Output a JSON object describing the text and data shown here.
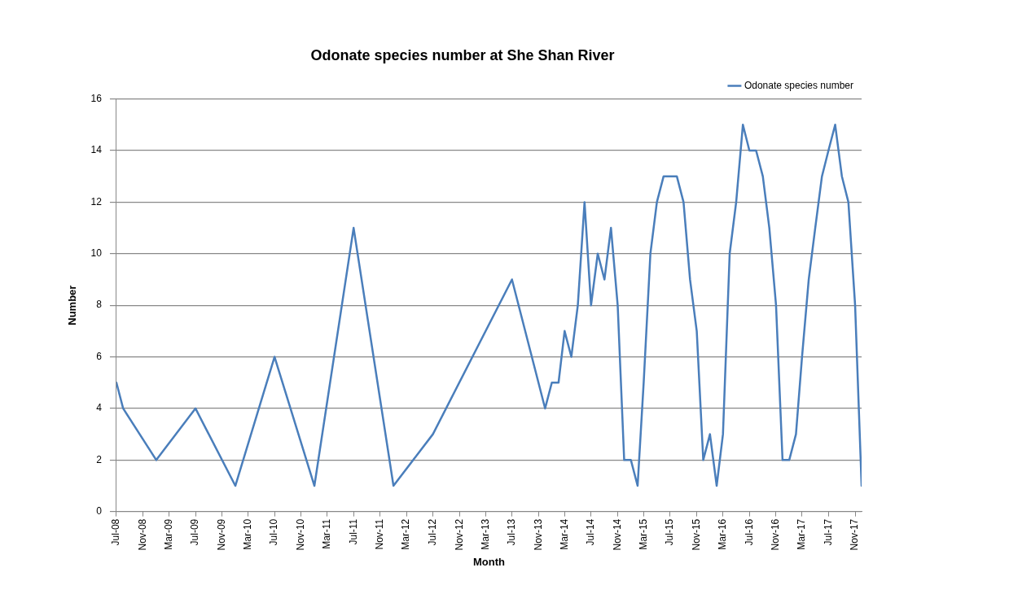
{
  "chart_data": {
    "type": "line",
    "title": "Odonate species number at She Shan River",
    "xlabel": "Month",
    "ylabel": "Number",
    "x": [
      "2008-07",
      "2008-08",
      "2009-01",
      "2009-07",
      "2010-01",
      "2010-07",
      "2011-01",
      "2011-07",
      "2012-01",
      "2012-07",
      "2013-07",
      "2013-12",
      "2014-01",
      "2014-02",
      "2014-03",
      "2014-04",
      "2014-05",
      "2014-06",
      "2014-07",
      "2014-08",
      "2014-09",
      "2014-10",
      "2014-11",
      "2014-12",
      "2015-01",
      "2015-02",
      "2015-03",
      "2015-04",
      "2015-05",
      "2015-06",
      "2015-07",
      "2015-08",
      "2015-09",
      "2015-10",
      "2015-11",
      "2015-12",
      "2016-01",
      "2016-02",
      "2016-03",
      "2016-04",
      "2016-05",
      "2016-06",
      "2016-07",
      "2016-08",
      "2016-09",
      "2016-10",
      "2016-11",
      "2016-12",
      "2017-01",
      "2017-02",
      "2017-03",
      "2017-04",
      "2017-05",
      "2017-06",
      "2017-07",
      "2017-08",
      "2017-09",
      "2017-10",
      "2017-11",
      "2017-12"
    ],
    "series": [
      {
        "name": "Odonate species number",
        "color": "#4a7ebb",
        "values": [
          5,
          4,
          2,
          4,
          1,
          6,
          1,
          11,
          1,
          3,
          9,
          4,
          5,
          5,
          7,
          6,
          8,
          12,
          8,
          10,
          9,
          11,
          8,
          2,
          2,
          1,
          5,
          10,
          12,
          13,
          13,
          13,
          12,
          9,
          7,
          2,
          3,
          1,
          3,
          10,
          12,
          15,
          14,
          14,
          13,
          11,
          8,
          2,
          2,
          3,
          6,
          9,
          11,
          13,
          14,
          15,
          13,
          12,
          8,
          1
        ]
      }
    ],
    "xlim": [
      "2008-07",
      "2017-12"
    ],
    "xticks": [
      {
        "value": "2008-07",
        "label": "Jul-08"
      },
      {
        "value": "2008-11",
        "label": "Nov-08"
      },
      {
        "value": "2009-03",
        "label": "Mar-09"
      },
      {
        "value": "2009-07",
        "label": "Jul-09"
      },
      {
        "value": "2009-11",
        "label": "Nov-09"
      },
      {
        "value": "2010-03",
        "label": "Mar-10"
      },
      {
        "value": "2010-07",
        "label": "Jul-10"
      },
      {
        "value": "2010-11",
        "label": "Nov-10"
      },
      {
        "value": "2011-03",
        "label": "Mar-11"
      },
      {
        "value": "2011-07",
        "label": "Jul-11"
      },
      {
        "value": "2011-11",
        "label": "Nov-11"
      },
      {
        "value": "2012-03",
        "label": "Mar-12"
      },
      {
        "value": "2012-07",
        "label": "Jul-12"
      },
      {
        "value": "2012-11",
        "label": "Nov-12"
      },
      {
        "value": "2013-03",
        "label": "Mar-13"
      },
      {
        "value": "2013-07",
        "label": "Jul-13"
      },
      {
        "value": "2013-11",
        "label": "Nov-13"
      },
      {
        "value": "2014-03",
        "label": "Mar-14"
      },
      {
        "value": "2014-07",
        "label": "Jul-14"
      },
      {
        "value": "2014-11",
        "label": "Nov-14"
      },
      {
        "value": "2015-03",
        "label": "Mar-15"
      },
      {
        "value": "2015-07",
        "label": "Jul-15"
      },
      {
        "value": "2015-11",
        "label": "Nov-15"
      },
      {
        "value": "2016-03",
        "label": "Mar-16"
      },
      {
        "value": "2016-07",
        "label": "Jul-16"
      },
      {
        "value": "2016-11",
        "label": "Nov-16"
      },
      {
        "value": "2017-03",
        "label": "Mar-17"
      },
      {
        "value": "2017-07",
        "label": "Jul-17"
      },
      {
        "value": "2017-11",
        "label": "Nov-17"
      }
    ],
    "ylim": [
      0,
      16
    ],
    "yticks": [
      0,
      2,
      4,
      6,
      8,
      10,
      12,
      14,
      16
    ],
    "grid": "y",
    "legend": "top right",
    "marker": "none",
    "line_style": "solid"
  }
}
